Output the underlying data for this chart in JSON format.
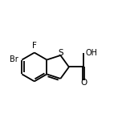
{
  "background_color": "#ffffff",
  "figsize": [
    1.52,
    1.52
  ],
  "dpi": 100,
  "bond_color": "#000000",
  "bond_lw": 1.3,
  "xlim": [
    0.08,
    0.98
  ],
  "ylim": [
    0.22,
    0.88
  ],
  "atom_labels": {
    "F": {
      "ha": "center",
      "va": "bottom",
      "fs": 7.5
    },
    "Br": {
      "ha": "right",
      "va": "center",
      "fs": 7.0
    },
    "S": {
      "ha": "center",
      "va": "center",
      "fs": 7.5
    },
    "O": {
      "ha": "center",
      "va": "center",
      "fs": 7.5
    },
    "OH": {
      "ha": "left",
      "va": "center",
      "fs": 7.0
    }
  }
}
